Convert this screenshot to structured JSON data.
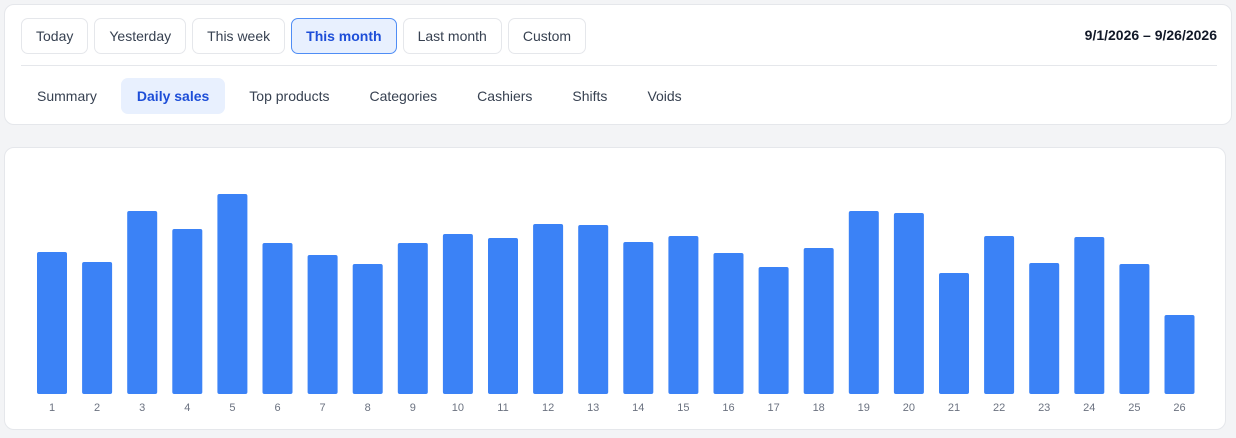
{
  "date_ranges": [
    {
      "label": "Today",
      "active": false
    },
    {
      "label": "Yesterday",
      "active": false
    },
    {
      "label": "This week",
      "active": false
    },
    {
      "label": "This month",
      "active": true
    },
    {
      "label": "Last month",
      "active": false
    },
    {
      "label": "Custom",
      "active": false
    }
  ],
  "date_range_display": "9/1/2026 – 9/26/2026",
  "tabs": [
    {
      "label": "Summary",
      "active": false
    },
    {
      "label": "Daily sales",
      "active": true
    },
    {
      "label": "Top products",
      "active": false
    },
    {
      "label": "Categories",
      "active": false
    },
    {
      "label": "Cashiers",
      "active": false
    },
    {
      "label": "Shifts",
      "active": false
    },
    {
      "label": "Voids",
      "active": false
    }
  ],
  "colors": {
    "bar": "#3b82f6",
    "accent": "#1d4ed8"
  },
  "chart_data": {
    "type": "bar",
    "title": "",
    "xlabel": "",
    "ylabel": "",
    "categories": [
      "1",
      "2",
      "3",
      "4",
      "5",
      "6",
      "7",
      "8",
      "9",
      "10",
      "11",
      "12",
      "13",
      "14",
      "15",
      "16",
      "17",
      "18",
      "19",
      "20",
      "21",
      "22",
      "23",
      "24",
      "25",
      "26"
    ],
    "values": [
      142,
      132,
      183,
      165,
      200,
      151,
      139,
      130,
      151,
      160,
      156,
      170,
      169,
      152,
      158,
      141,
      127,
      146,
      183,
      181,
      121,
      158,
      131,
      157,
      130,
      79
    ],
    "ylim": [
      0,
      200
    ],
    "grid": false
  }
}
